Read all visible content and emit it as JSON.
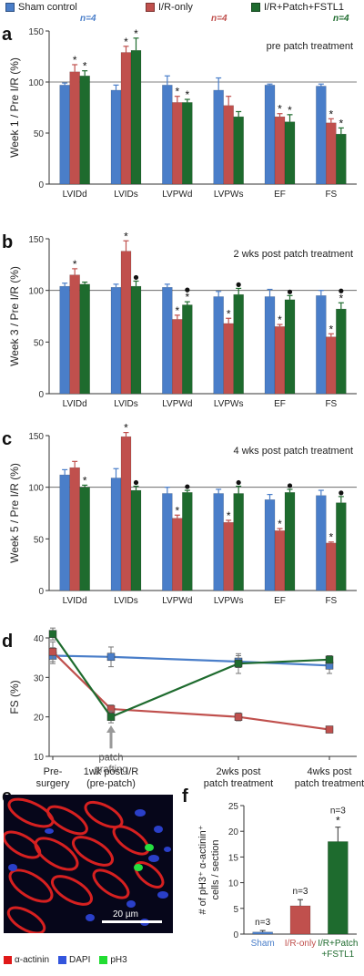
{
  "legend": {
    "items": [
      {
        "label": "Sham control",
        "color": "#4a7ec9",
        "n": "n=4"
      },
      {
        "label": "I/R-only",
        "color": "#c0504d",
        "n": "n=4"
      },
      {
        "label": "I/R+Patch+FSTL1",
        "color": "#1e6b2e",
        "n": "n=4"
      }
    ]
  },
  "colors": {
    "sham": "#4a7ec9",
    "ir": "#c0504d",
    "patch": "#1e6b2e",
    "sham_n": "#4a7ec9",
    "ir_n": "#c0504d",
    "patch_n": "#1e6b2e"
  },
  "chart_data": [
    {
      "panel": "a",
      "type": "bar",
      "annotation": "pre patch treatment",
      "ylabel": "Week 1 / Pre I/R (%)",
      "ylim": [
        0,
        150
      ],
      "yticks": [
        0,
        50,
        100,
        150
      ],
      "refline": 100,
      "categories": [
        "LVIDd",
        "LVIDs",
        "LVPWd",
        "LVPWs",
        "EF",
        "FS"
      ],
      "series": [
        {
          "name": "Sham control",
          "values": [
            97,
            92,
            97,
            92,
            97,
            96
          ],
          "err": [
            2,
            5,
            9,
            12,
            1,
            2
          ],
          "marks": [
            "",
            "",
            "",
            "",
            "",
            ""
          ]
        },
        {
          "name": "I/R-only",
          "values": [
            110,
            129,
            80,
            77,
            66,
            60
          ],
          "err": [
            7,
            6,
            6,
            9,
            3,
            4
          ],
          "marks": [
            "*",
            "*",
            "*",
            "",
            "*",
            "*"
          ]
        },
        {
          "name": "I/R+Patch+FSTL1",
          "values": [
            106,
            131,
            80,
            66,
            61,
            49
          ],
          "err": [
            5,
            12,
            3,
            5,
            7,
            6
          ],
          "marks": [
            "*",
            "*",
            "*",
            "",
            "*",
            "*"
          ]
        }
      ]
    },
    {
      "panel": "b",
      "type": "bar",
      "annotation": "2 wks post patch treatment",
      "ylabel": "Week 3 / Pre I/R (%)",
      "ylim": [
        0,
        150
      ],
      "yticks": [
        0,
        50,
        100,
        150
      ],
      "refline": 100,
      "categories": [
        "LVIDd",
        "LVIDs",
        "LVPWd",
        "LVPWs",
        "EF",
        "FS"
      ],
      "series": [
        {
          "name": "Sham control",
          "values": [
            104,
            103,
            103,
            94,
            94,
            95
          ],
          "err": [
            3,
            3,
            3,
            5,
            7,
            5
          ],
          "marks": [
            "",
            "",
            "",
            "",
            "",
            ""
          ]
        },
        {
          "name": "I/R-only",
          "values": [
            115,
            138,
            72,
            68,
            65,
            55
          ],
          "err": [
            6,
            10,
            4,
            5,
            2,
            3
          ],
          "marks": [
            "*",
            "*",
            "*",
            "*",
            "*",
            "*"
          ]
        },
        {
          "name": "I/R+Patch+FSTL1",
          "values": [
            106,
            104,
            86,
            96,
            91,
            82
          ],
          "err": [
            2,
            5,
            3,
            6,
            4,
            6
          ],
          "marks": [
            "",
            "●",
            "●*",
            "●",
            "●",
            "●*"
          ]
        }
      ]
    },
    {
      "panel": "c",
      "type": "bar",
      "annotation": "4 wks post patch treatment",
      "ylabel": "Week 5 / Pre I/R (%)",
      "ylim": [
        0,
        150
      ],
      "yticks": [
        0,
        50,
        100,
        150
      ],
      "refline": 100,
      "categories": [
        "LVIDd",
        "LVIDs",
        "LVPWd",
        "LVPWs",
        "EF",
        "FS"
      ],
      "series": [
        {
          "name": "Sham control",
          "values": [
            112,
            109,
            94,
            94,
            88,
            92
          ],
          "err": [
            5,
            9,
            6,
            4,
            5,
            5
          ],
          "marks": [
            "",
            "",
            "",
            "",
            "",
            ""
          ]
        },
        {
          "name": "I/R-only",
          "values": [
            119,
            149,
            70,
            66,
            58,
            46
          ],
          "err": [
            6,
            4,
            3,
            2,
            2,
            1
          ],
          "marks": [
            "",
            "*",
            "*",
            "*",
            "*",
            "*"
          ]
        },
        {
          "name": "I/R+Patch+FSTL1",
          "values": [
            100,
            97,
            95,
            94,
            95,
            85
          ],
          "err": [
            2,
            4,
            2,
            7,
            3,
            6
          ],
          "marks": [
            "*",
            "●",
            "●",
            "●",
            "●",
            "●"
          ]
        }
      ]
    },
    {
      "panel": "d",
      "type": "line",
      "ylabel": "FS (%)",
      "ylim": [
        10,
        40
      ],
      "yticks": [
        10,
        20,
        30,
        40
      ],
      "x": [
        "Pre-\nsurgery",
        "1wk post I/R\n(pre-patch)",
        "2wks post\npatch treatment",
        "4wks post\npatch treatment"
      ],
      "annotation": "patch\ngrafting",
      "series": [
        {
          "name": "Sham control",
          "values": [
            35.5,
            35.2,
            34.0,
            33.0
          ],
          "err": [
            2.0,
            2.5,
            1.5,
            2.0
          ]
        },
        {
          "name": "I/R-only",
          "values": [
            36.5,
            22.0,
            20.0,
            16.8
          ],
          "err": [
            2.5,
            1.0,
            1.0,
            0.8
          ]
        },
        {
          "name": "I/R+Patch+FSTL1",
          "values": [
            41.0,
            20.0,
            33.5,
            34.5
          ],
          "err": [
            1.5,
            1.5,
            2.5,
            1.0
          ]
        }
      ]
    },
    {
      "panel": "f",
      "type": "bar",
      "ylabel": "# of pH3⁺ α-actinin⁺\ncells / section",
      "ylim": [
        0,
        25
      ],
      "yticks": [
        0,
        5,
        10,
        15,
        20,
        25
      ],
      "categories": [
        "Sham",
        "I/R-only",
        "I/R+Patch\n+FSTL1"
      ],
      "values": [
        0.4,
        5.5,
        18.0
      ],
      "err": [
        0.3,
        1.2,
        2.8
      ],
      "ns": [
        "n=3",
        "n=3",
        "n=3"
      ],
      "marks": [
        "",
        "",
        "*"
      ]
    }
  ],
  "panel_e": {
    "label": "e",
    "scalebar": "20 µm",
    "channels": [
      {
        "label": "α-actinin",
        "color": "#e01818"
      },
      {
        "label": "DAPI",
        "color": "#3355dd"
      },
      {
        "label": "pH3",
        "color": "#22dd33"
      }
    ]
  }
}
